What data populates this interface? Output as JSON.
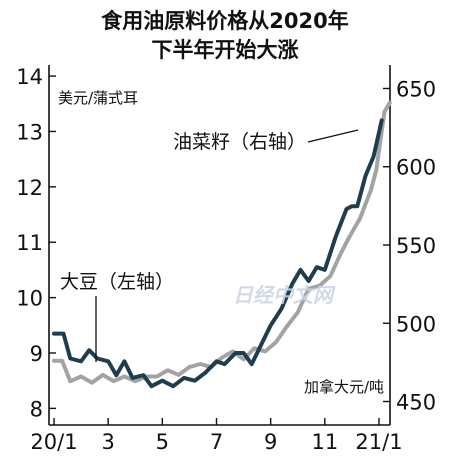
{
  "chart_data": {
    "type": "line",
    "title": [
      "食用油原料价格从2020年",
      "下半年开始大涨"
    ],
    "left_axis": {
      "unit": "美元/蒲式耳",
      "ticks": [
        8,
        9,
        10,
        11,
        12,
        13,
        14
      ],
      "ylim": [
        7.7,
        14.2
      ]
    },
    "right_axis": {
      "unit": "加拿大元/吨",
      "ticks": [
        450,
        500,
        550,
        600,
        650
      ],
      "ylim": [
        435,
        665
      ]
    },
    "x_ticks": [
      {
        "label": "20/1",
        "month": 0
      },
      {
        "label": "3",
        "month": 2
      },
      {
        "label": "5",
        "month": 4
      },
      {
        "label": "7",
        "month": 6
      },
      {
        "label": "9",
        "month": 8
      },
      {
        "label": "11",
        "month": 10
      },
      {
        "label": "21/1",
        "month": 12
      }
    ],
    "series": [
      {
        "name": "大豆（左轴）",
        "axis": "left",
        "color": "#1e3d4f",
        "points": [
          [
            0.0,
            9.35
          ],
          [
            0.35,
            9.35
          ],
          [
            0.6,
            8.9
          ],
          [
            1.0,
            8.85
          ],
          [
            1.3,
            9.05
          ],
          [
            1.6,
            8.9
          ],
          [
            2.0,
            8.85
          ],
          [
            2.3,
            8.6
          ],
          [
            2.6,
            8.85
          ],
          [
            2.9,
            8.55
          ],
          [
            3.3,
            8.6
          ],
          [
            3.6,
            8.4
          ],
          [
            4.0,
            8.5
          ],
          [
            4.4,
            8.4
          ],
          [
            4.8,
            8.55
          ],
          [
            5.2,
            8.5
          ],
          [
            5.6,
            8.65
          ],
          [
            6.0,
            8.85
          ],
          [
            6.3,
            8.8
          ],
          [
            6.7,
            9.0
          ],
          [
            7.0,
            9.0
          ],
          [
            7.3,
            8.8
          ],
          [
            7.6,
            9.1
          ],
          [
            8.0,
            9.5
          ],
          [
            8.4,
            9.8
          ],
          [
            8.8,
            10.25
          ],
          [
            9.1,
            10.5
          ],
          [
            9.4,
            10.3
          ],
          [
            9.7,
            10.55
          ],
          [
            10.0,
            10.5
          ],
          [
            10.4,
            11.1
          ],
          [
            10.8,
            11.6
          ],
          [
            11.0,
            11.65
          ],
          [
            11.2,
            11.65
          ],
          [
            11.5,
            12.2
          ],
          [
            11.8,
            12.55
          ],
          [
            12.1,
            13.2
          ]
        ]
      },
      {
        "name": "油菜籽（右轴）",
        "axis": "right",
        "color": "#a3a3a3",
        "points": [
          [
            0.0,
            476
          ],
          [
            0.3,
            476
          ],
          [
            0.6,
            463
          ],
          [
            1.0,
            466
          ],
          [
            1.4,
            462
          ],
          [
            1.8,
            467
          ],
          [
            2.2,
            463
          ],
          [
            2.6,
            466
          ],
          [
            3.0,
            463
          ],
          [
            3.4,
            466
          ],
          [
            3.8,
            466
          ],
          [
            4.2,
            470
          ],
          [
            4.6,
            467
          ],
          [
            5.0,
            472
          ],
          [
            5.4,
            474
          ],
          [
            5.8,
            472
          ],
          [
            6.2,
            478
          ],
          [
            6.6,
            482
          ],
          [
            7.0,
            477
          ],
          [
            7.4,
            484
          ],
          [
            7.8,
            482
          ],
          [
            8.2,
            488
          ],
          [
            8.6,
            498
          ],
          [
            9.0,
            507
          ],
          [
            9.4,
            522
          ],
          [
            9.8,
            524
          ],
          [
            10.2,
            530
          ],
          [
            10.6,
            545
          ],
          [
            10.9,
            555
          ],
          [
            11.3,
            567
          ],
          [
            11.7,
            585
          ],
          [
            11.9,
            598
          ],
          [
            12.2,
            635
          ],
          [
            12.4,
            641
          ]
        ]
      }
    ],
    "legend_labels": {
      "soy": "大豆（左轴）",
      "rapeseed": "油菜籽（右轴）"
    },
    "watermark": "日经中文网"
  }
}
